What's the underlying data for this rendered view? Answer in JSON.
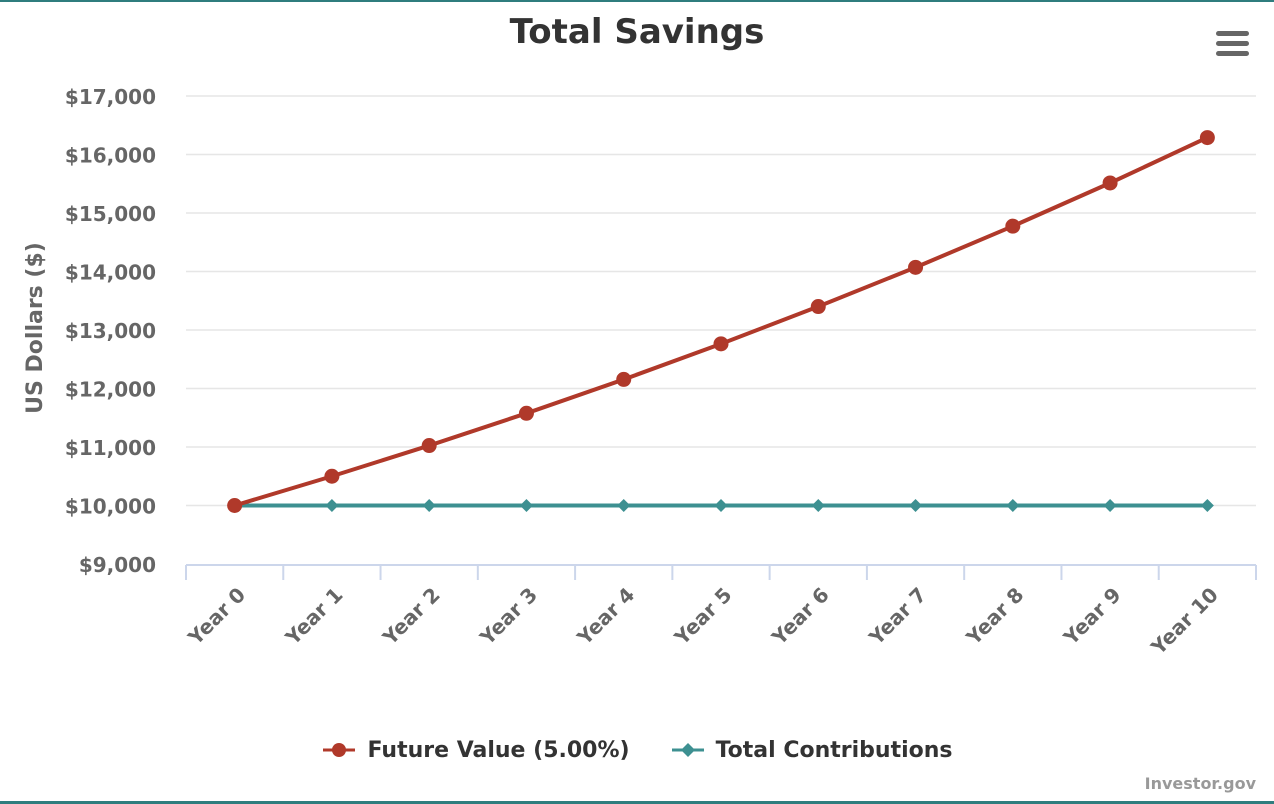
{
  "chart_data": {
    "type": "line",
    "title": "Total Savings",
    "ylabel": "US Dollars ($)",
    "ylim": [
      9000,
      17000
    ],
    "yticks": [
      "$9,000",
      "$10,000",
      "$11,000",
      "$12,000",
      "$13,000",
      "$14,000",
      "$15,000",
      "$16,000",
      "$17,000"
    ],
    "ytick_values": [
      9000,
      10000,
      11000,
      12000,
      13000,
      14000,
      15000,
      16000,
      17000
    ],
    "categories": [
      "Year 0",
      "Year 1",
      "Year 2",
      "Year 3",
      "Year 4",
      "Year 5",
      "Year 6",
      "Year 7",
      "Year 8",
      "Year 9",
      "Year 10"
    ],
    "series": [
      {
        "name": "Future Value (5.00%)",
        "color": "#b0392a",
        "marker": "circle",
        "values": [
          10000,
          10500,
          11025,
          11576,
          12155,
          12763,
          13401,
          14071,
          14775,
          15513,
          16289
        ]
      },
      {
        "name": "Total Contributions",
        "color": "#3d9091",
        "marker": "diamond",
        "values": [
          10000,
          10000,
          10000,
          10000,
          10000,
          10000,
          10000,
          10000,
          10000,
          10000,
          10000
        ]
      }
    ],
    "grid": true,
    "legend_position": "bottom-center"
  },
  "credit": "Investor.gov",
  "menu_icon": "hamburger-menu-icon"
}
